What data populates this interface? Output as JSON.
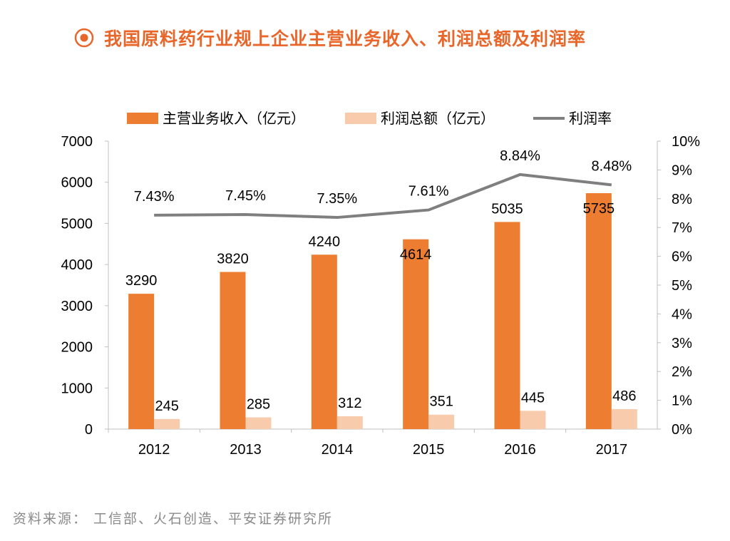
{
  "header": {
    "title": "我国原料药行业规上企业主营业务收入、利润总额及利润率"
  },
  "source": {
    "text": "资料来源： 工信部、火石创造、平安证券研究所"
  },
  "colors": {
    "revenue": "#ed7d31",
    "profit": "#f8cbad",
    "margin": "#7f7f7f",
    "title": "#e8662a"
  },
  "chart_data": {
    "type": "bar",
    "categories": [
      "2012",
      "2013",
      "2014",
      "2015",
      "2016",
      "2017"
    ],
    "series": [
      {
        "name": "主营业务收入（亿元）",
        "type": "bar",
        "axis": "left",
        "values": [
          3290,
          3820,
          4240,
          4614,
          5035,
          5735
        ],
        "labels": [
          "3290",
          "3820",
          "4240",
          "4614",
          "5035",
          "5735"
        ]
      },
      {
        "name": "利润总额（亿元）",
        "type": "bar",
        "axis": "left",
        "values": [
          245,
          285,
          312,
          351,
          445,
          486
        ],
        "labels": [
          "245",
          "285",
          "312",
          "351",
          "445",
          "486"
        ]
      },
      {
        "name": "利润率",
        "type": "line",
        "axis": "right",
        "values": [
          7.43,
          7.45,
          7.35,
          7.61,
          8.84,
          8.48
        ],
        "labels": [
          "7.43%",
          "7.45%",
          "7.35%",
          "7.61%",
          "8.84%",
          "8.48%"
        ]
      }
    ],
    "y_left": {
      "min": 0,
      "max": 7000,
      "ticks": [
        "0",
        "1000",
        "2000",
        "3000",
        "4000",
        "5000",
        "6000",
        "7000"
      ]
    },
    "y_right": {
      "min": 0,
      "max": 10,
      "ticks": [
        "0%",
        "1%",
        "2%",
        "3%",
        "4%",
        "5%",
        "6%",
        "7%",
        "8%",
        "9%",
        "10%"
      ]
    },
    "legend_position": "top",
    "grid": false
  }
}
